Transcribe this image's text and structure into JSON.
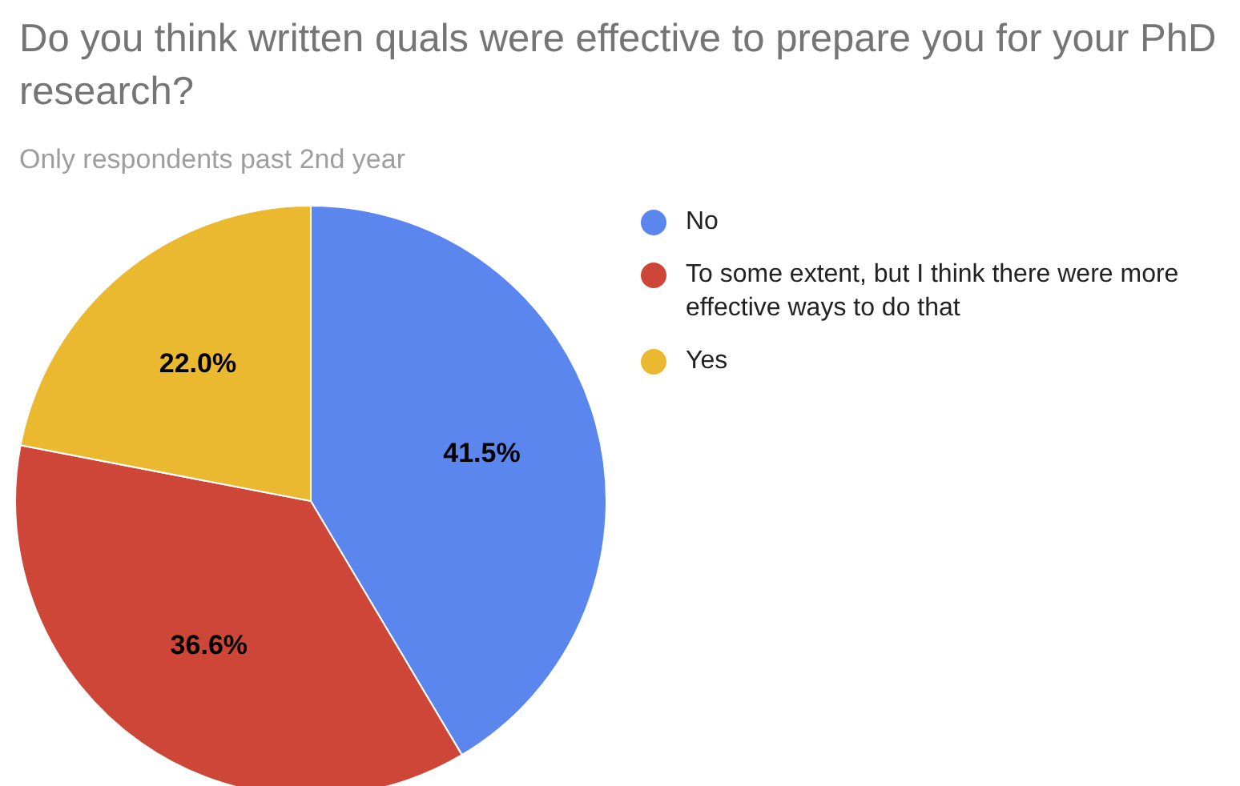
{
  "chart_data": {
    "type": "pie",
    "title": "Do you think written quals were effective to prepare you for your PhD research?",
    "subtitle": "Only respondents past 2nd year",
    "categories": [
      "No",
      "To some extent, but I think there were more effective ways to do that",
      "Yes"
    ],
    "values": [
      41.5,
      36.6,
      22.0
    ],
    "colors": [
      "#5a86ee",
      "#cd4637",
      "#ebb92f"
    ],
    "value_labels": [
      "41.5%",
      "36.6%",
      "22.0%"
    ],
    "legend": "right"
  }
}
